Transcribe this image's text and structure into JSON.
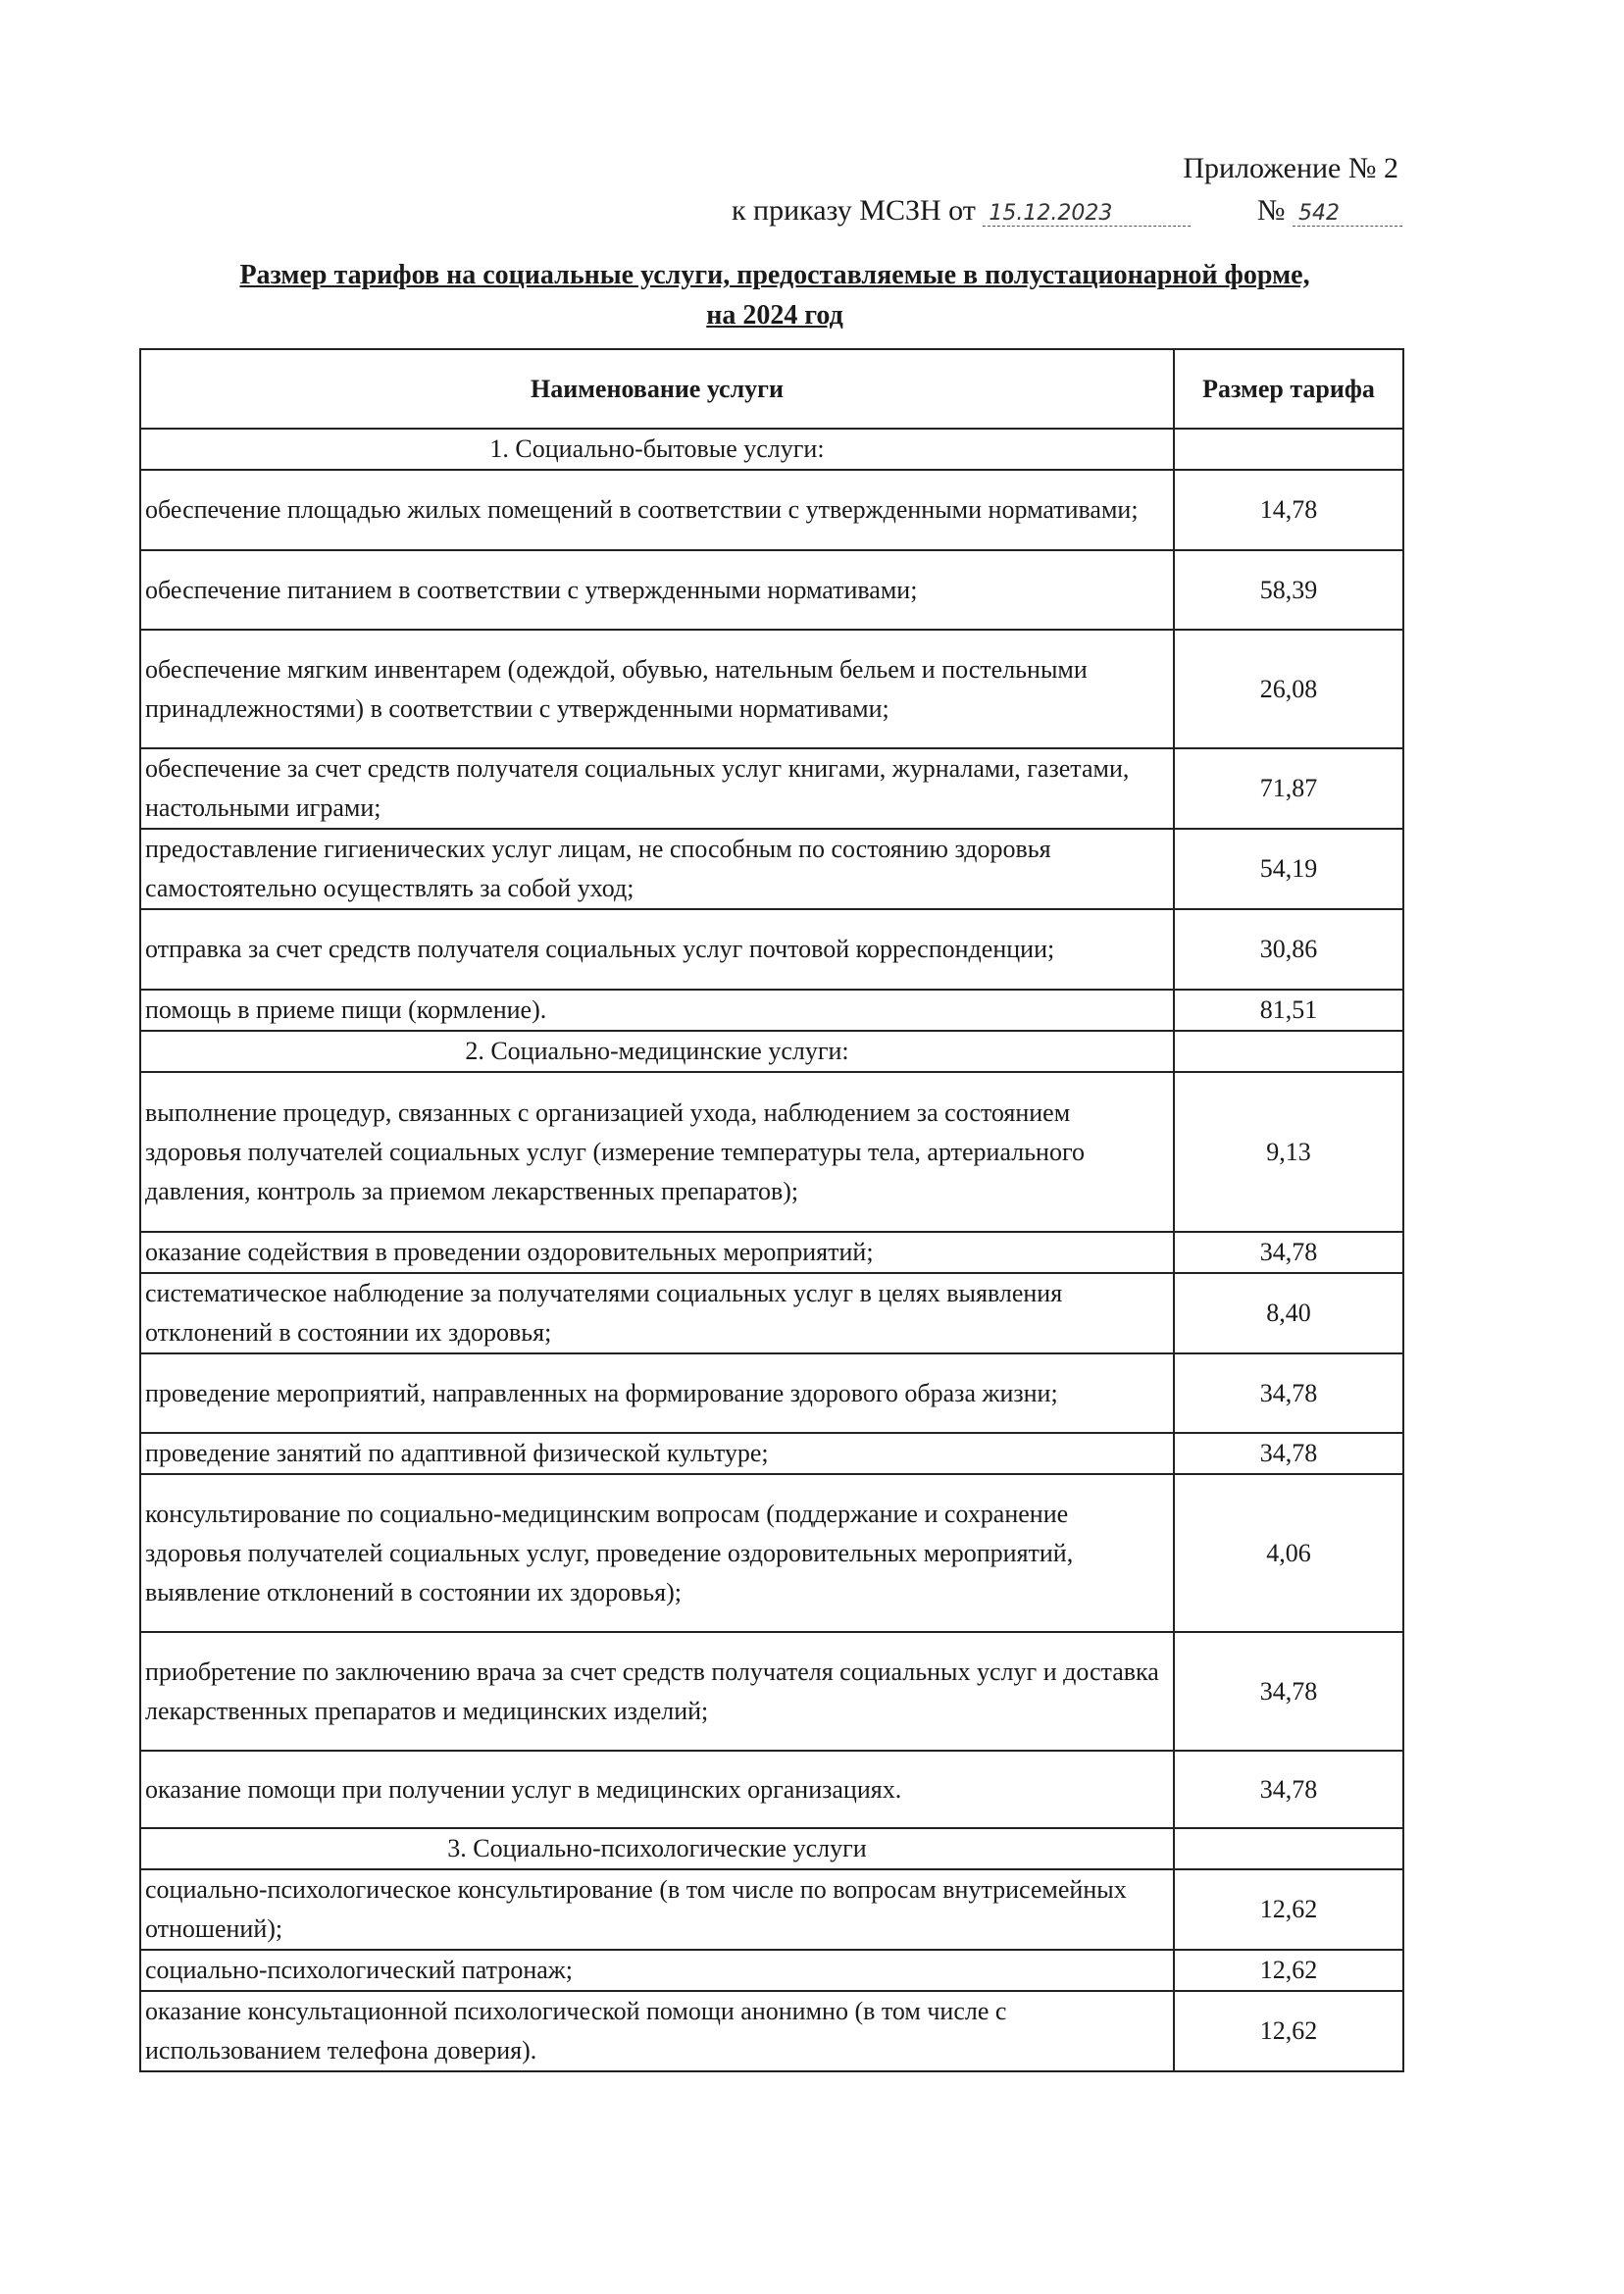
{
  "header": {
    "appendix": "Приложение № 2",
    "order_prefix": "к приказу МСЗН от",
    "order_date": "15.12.2023",
    "number_label": "№",
    "order_number": "542"
  },
  "title": {
    "line1": "Размер тарифов на социальные услуги, предоставляемые в полустационарной форме,",
    "line2": "на 2024 год"
  },
  "table": {
    "columns": [
      "Наименование услуги",
      "Размер тарифа"
    ],
    "rows": [
      {
        "section": "1. Социально-бытовые услуги:"
      },
      {
        "name": "обеспечение площадью жилых помещений в соответствии с утвержденными нормативами;",
        "value": "14,78"
      },
      {
        "name": "обеспечение питанием в соответствии с утвержденными нормативами;",
        "value": "58,39"
      },
      {
        "name": "обеспечение мягким инвентарем (одеждой, обувью, нательным бельем и постельными принадлежностями) в соответствии с утвержденными нормативами;",
        "value": "26,08"
      },
      {
        "name": "обеспечение за счет средств получателя социальных услуг книгами, журналами, газетами, настольными играми;",
        "value": "71,87"
      },
      {
        "name": "предоставление гигиенических услуг лицам, не способным по состоянию здоровья самостоятельно осуществлять за собой уход;",
        "value": "54,19"
      },
      {
        "name": "отправка за счет средств получателя социальных услуг почтовой корреспонденции;",
        "value": "30,86"
      },
      {
        "name": "помощь в приеме пищи (кормление).",
        "value": "81,51"
      },
      {
        "section": "2. Социально-медицинские услуги:"
      },
      {
        "name": "выполнение процедур, связанных с организацией ухода, наблюдением за состоянием здоровья получателей социальных услуг (измерение температуры тела, артериального давления, контроль за приемом лекарственных препаратов);",
        "value": "9,13"
      },
      {
        "name": "оказание содействия в проведении оздоровительных мероприятий;",
        "value": "34,78"
      },
      {
        "name": "систематическое наблюдение за получателями социальных услуг в целях выявления отклонений в состоянии их здоровья;",
        "value": "8,40"
      },
      {
        "name": "проведение мероприятий, направленных на формирование здорового образа жизни;",
        "value": "34,78"
      },
      {
        "name": "проведение занятий по адаптивной физической культуре;",
        "value": "34,78"
      },
      {
        "name": "консультирование по социально-медицинским вопросам (поддержание и сохранение здоровья получателей социальных услуг, проведение оздоровительных мероприятий, выявление отклонений в состоянии их здоровья);",
        "value": "4,06"
      },
      {
        "name": "приобретение по заключению врача за счет средств получателя социальных услуг и доставка лекарственных препаратов и медицинских изделий;",
        "value": "34,78"
      },
      {
        "name": "оказание помощи при получении услуг в медицинских организациях.",
        "value": "34,78"
      },
      {
        "section": "3. Социально-психологические услуги"
      },
      {
        "name": "социально-психологическое консультирование (в том числе по вопросам внутрисемейных отношений);",
        "value": "12,62"
      },
      {
        "name": "социально-психологический патронаж;",
        "value": "12,62"
      },
      {
        "name": "оказание консультационной психологической помощи анонимно (в том числе с использованием телефона доверия).",
        "value": "12,62"
      }
    ]
  }
}
